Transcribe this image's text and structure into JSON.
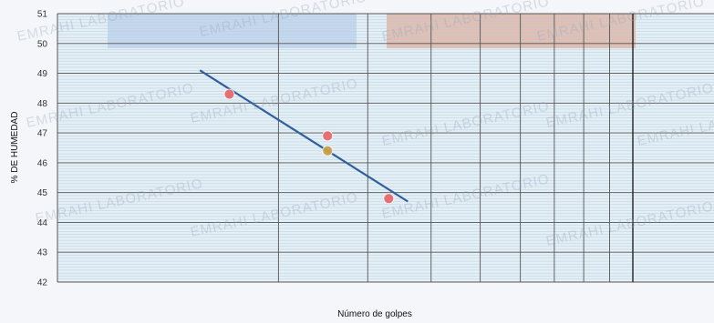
{
  "watermark": "EMRAHI LABORATORIO",
  "chart_data": {
    "type": "scatter",
    "xlabel": "Número de golpes",
    "ylabel": "% DE HUMEDAD",
    "ylim": [
      42,
      51
    ],
    "yticks": [
      42,
      43,
      44,
      45,
      46,
      47,
      48,
      49,
      50,
      51
    ],
    "x_scale": "log",
    "xlim": [
      10,
      100
    ],
    "grid": true,
    "points": [
      {
        "x": 16,
        "y": 48.3,
        "color": "#e86a6e"
      },
      {
        "x": 25,
        "y": 46.9,
        "color": "#e86a6e"
      },
      {
        "x": 25,
        "y": 46.4,
        "color": "#c9a04a"
      },
      {
        "x": 33,
        "y": 44.8,
        "color": "#e86a6e"
      }
    ],
    "trendline": {
      "x": [
        14,
        36
      ],
      "y": [
        49.1,
        44.7
      ],
      "color": "#2f5f9c"
    },
    "reference_x": 100
  }
}
